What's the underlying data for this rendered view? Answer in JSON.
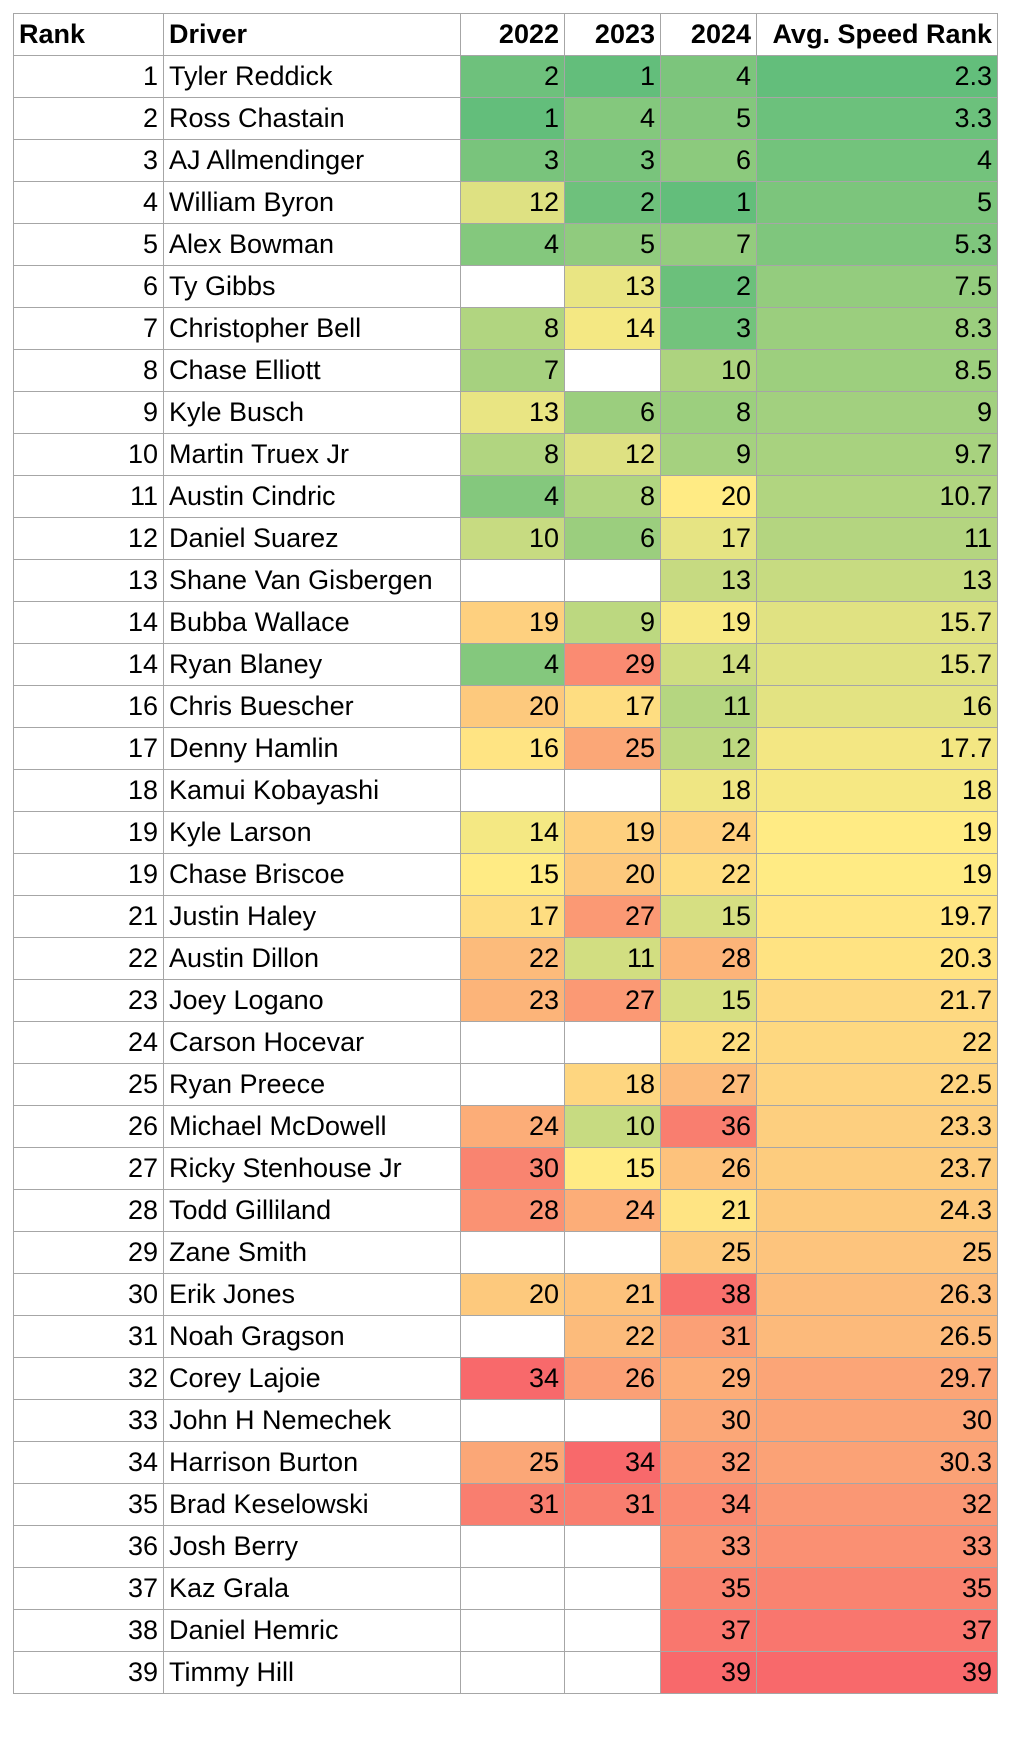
{
  "table": {
    "header": [
      "Rank",
      "Driver",
      "2022",
      "2023",
      "2024",
      "Avg. Speed Rank"
    ],
    "rows": [
      [
        1,
        "Tyler Reddick",
        2,
        1,
        4,
        2.3
      ],
      [
        2,
        "Ross Chastain",
        1,
        4,
        5,
        3.3
      ],
      [
        3,
        "AJ Allmendinger",
        3,
        3,
        6,
        4
      ],
      [
        4,
        "William Byron",
        12,
        2,
        1,
        5
      ],
      [
        5,
        "Alex Bowman",
        4,
        5,
        7,
        5.3
      ],
      [
        6,
        "Ty Gibbs",
        null,
        13,
        2,
        7.5
      ],
      [
        7,
        "Christopher Bell",
        8,
        14,
        3,
        8.3
      ],
      [
        8,
        "Chase Elliott",
        7,
        null,
        10,
        8.5
      ],
      [
        9,
        "Kyle Busch",
        13,
        6,
        8,
        9
      ],
      [
        10,
        "Martin Truex Jr",
        8,
        12,
        9,
        9.7
      ],
      [
        11,
        "Austin Cindric",
        4,
        8,
        20,
        10.7
      ],
      [
        12,
        "Daniel Suarez",
        10,
        6,
        17,
        11
      ],
      [
        13,
        "Shane Van Gisbergen",
        null,
        null,
        13,
        13
      ],
      [
        14,
        "Bubba Wallace",
        19,
        9,
        19,
        15.7
      ],
      [
        14,
        "Ryan Blaney",
        4,
        29,
        14,
        15.7
      ],
      [
        16,
        "Chris Buescher",
        20,
        17,
        11,
        16
      ],
      [
        17,
        "Denny Hamlin",
        16,
        25,
        12,
        17.7
      ],
      [
        18,
        "Kamui Kobayashi",
        null,
        null,
        18,
        18
      ],
      [
        19,
        "Kyle Larson",
        14,
        19,
        24,
        19
      ],
      [
        19,
        "Chase Briscoe",
        15,
        20,
        22,
        19
      ],
      [
        21,
        "Justin Haley",
        17,
        27,
        15,
        19.7
      ],
      [
        22,
        "Austin Dillon",
        22,
        11,
        28,
        20.3
      ],
      [
        23,
        "Joey Logano",
        23,
        27,
        15,
        21.7
      ],
      [
        24,
        "Carson Hocevar",
        null,
        null,
        22,
        22
      ],
      [
        25,
        "Ryan Preece",
        null,
        18,
        27,
        22.5
      ],
      [
        26,
        "Michael McDowell",
        24,
        10,
        36,
        23.3
      ],
      [
        27,
        "Ricky Stenhouse Jr",
        30,
        15,
        26,
        23.7
      ],
      [
        28,
        "Todd Gilliland",
        28,
        24,
        21,
        24.3
      ],
      [
        29,
        "Zane Smith",
        null,
        null,
        25,
        25
      ],
      [
        30,
        "Erik Jones",
        20,
        21,
        38,
        26.3
      ],
      [
        31,
        "Noah Gragson",
        null,
        22,
        31,
        26.5
      ],
      [
        32,
        "Corey Lajoie",
        34,
        26,
        29,
        29.7
      ],
      [
        33,
        "John H Nemechek",
        null,
        null,
        30,
        30
      ],
      [
        34,
        "Harrison Burton",
        25,
        34,
        32,
        30.3
      ],
      [
        35,
        "Brad Keselowski",
        31,
        31,
        34,
        32
      ],
      [
        36,
        "Josh Berry",
        null,
        null,
        33,
        33
      ],
      [
        37,
        "Kaz Grala",
        null,
        null,
        35,
        35
      ],
      [
        38,
        "Daniel Hemric",
        null,
        null,
        37,
        37
      ],
      [
        39,
        "Timmy Hill",
        null,
        null,
        39,
        39
      ]
    ]
  }
}
